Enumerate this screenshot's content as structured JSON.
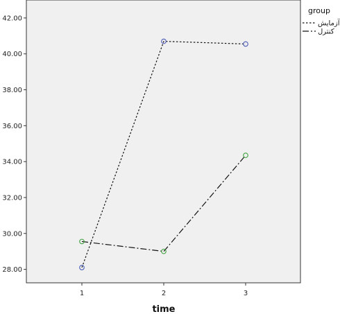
{
  "chart_data": {
    "type": "line",
    "xlabel": "time",
    "ylabel": "",
    "x": [
      1,
      2,
      3
    ],
    "ylim": [
      27.25,
      43.0
    ],
    "yticks": [
      28.0,
      30.0,
      32.0,
      34.0,
      36.0,
      38.0,
      40.0,
      42.0
    ],
    "legend_title": "group",
    "legend_position": "top-right",
    "grid": false,
    "series": [
      {
        "name": "آزمایش",
        "values": [
          28.1,
          40.7,
          40.55
        ],
        "line_style": "dotted",
        "marker_color": "#4b5bb5"
      },
      {
        "name": "کنترل",
        "values": [
          29.55,
          29.0,
          34.35
        ],
        "line_style": "dash-dot",
        "marker_color": "#3ea33e"
      }
    ],
    "colors": {
      "plot_background": "#f0f0f0",
      "line": "#111111"
    }
  }
}
